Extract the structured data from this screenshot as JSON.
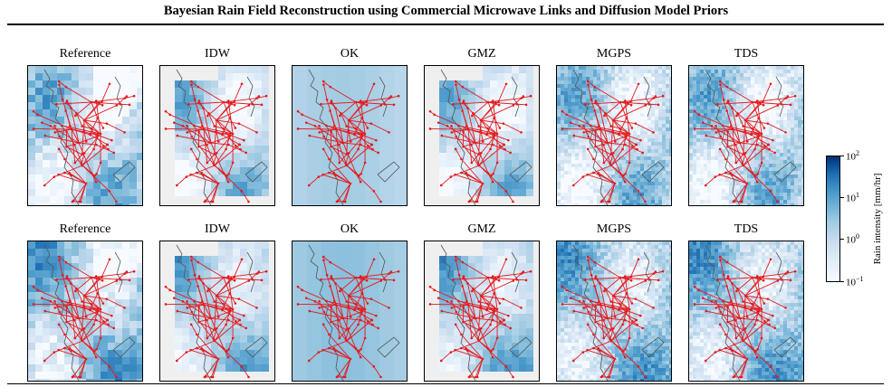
{
  "figure": {
    "title": "Bayesian Rain Field Reconstruction using Commercial Microwave Links and Diffusion Model Priors",
    "rows": [
      {
        "panels": [
          "Reference",
          "IDW",
          "OK",
          "GMZ",
          "MGPS",
          "TDS"
        ]
      },
      {
        "panels": [
          "Reference",
          "IDW",
          "OK",
          "GMZ",
          "MGPS",
          "TDS"
        ]
      }
    ],
    "colorbar": {
      "label": "Rain intensity [mm/hr]",
      "scale": "log",
      "ticks": [
        {
          "base": "10",
          "exp": "2"
        },
        {
          "base": "10",
          "exp": "1"
        },
        {
          "base": "10",
          "exp": "0"
        },
        {
          "base": "10",
          "exp": "−1"
        }
      ],
      "colormap": "Blues"
    },
    "link_color": "#e41a1c",
    "coast_color": "#555555"
  }
}
